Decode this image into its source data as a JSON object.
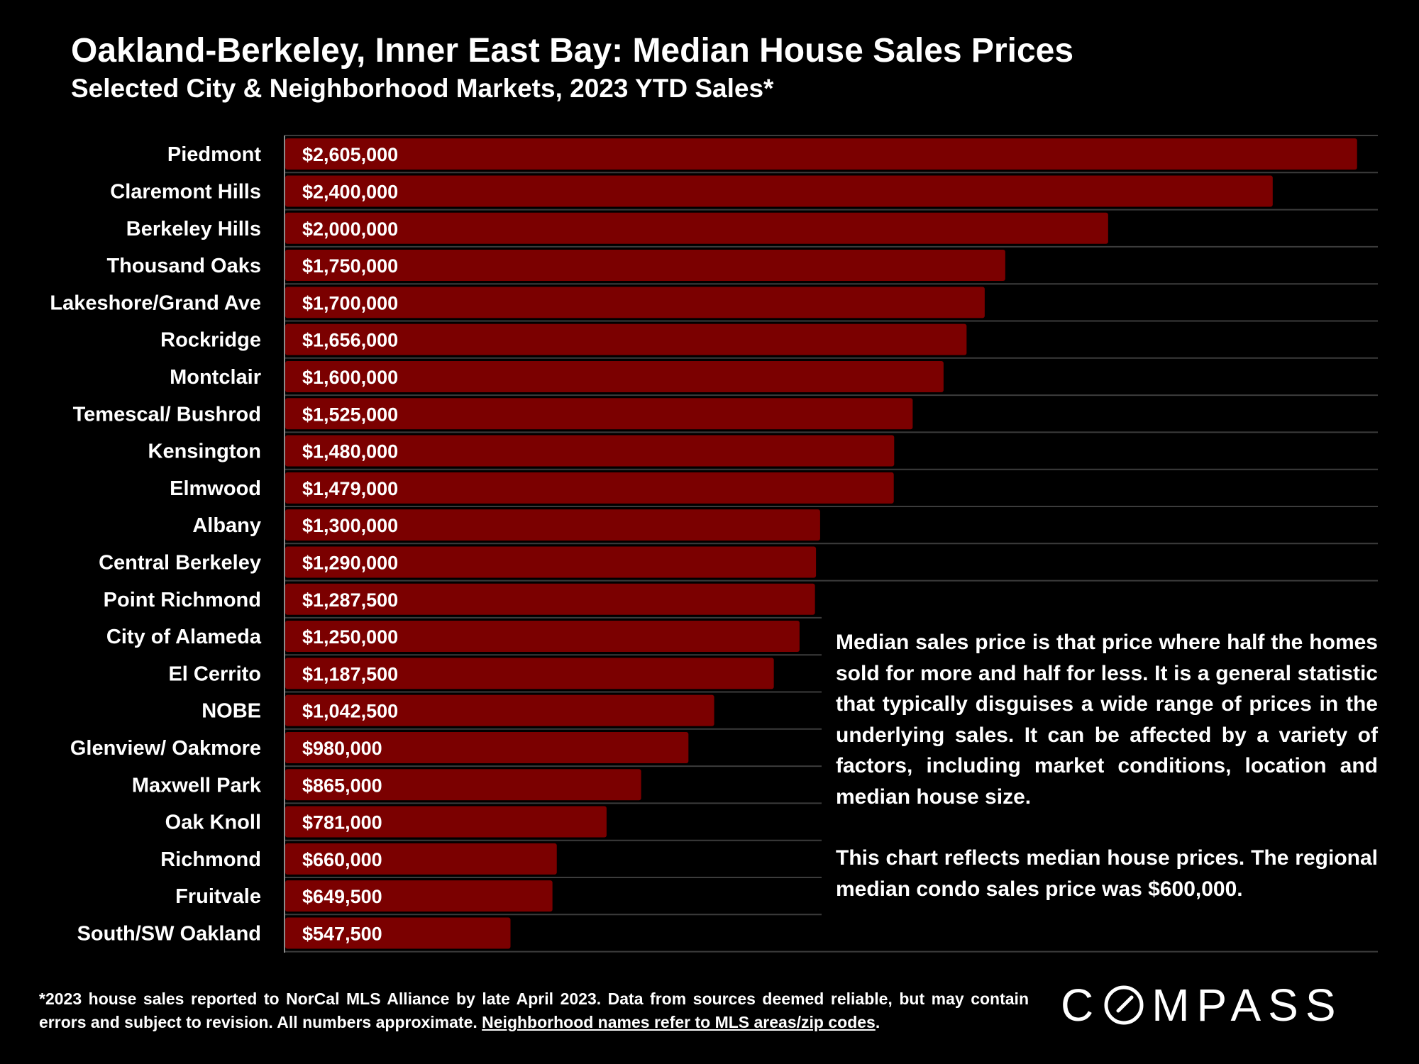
{
  "title": "Oakland-Berkeley, Inner East Bay: Median House Sales Prices",
  "subtitle": "Selected City & Neighborhood Markets, 2023 YTD Sales*",
  "chart_data": {
    "type": "bar",
    "orientation": "horizontal",
    "categories": [
      "Piedmont",
      "Claremont Hills",
      "Berkeley Hills",
      "Thousand Oaks",
      "Lakeshore/Grand Ave",
      "Rockridge",
      "Montclair",
      "Temescal/ Bushrod",
      "Kensington",
      "Elmwood",
      "Albany",
      "Central Berkeley",
      "Point Richmond",
      "City of Alameda",
      "El Cerrito",
      "NOBE",
      "Glenview/ Oakmore",
      "Maxwell Park",
      "Oak Knoll",
      "Richmond",
      "Fruitvale",
      "South/SW Oakland"
    ],
    "values": [
      2605000,
      2400000,
      2000000,
      1750000,
      1700000,
      1656000,
      1600000,
      1525000,
      1480000,
      1479000,
      1300000,
      1290000,
      1287500,
      1250000,
      1187500,
      1042500,
      980000,
      865000,
      781000,
      660000,
      649500,
      547500
    ],
    "data_labels": [
      "$2,605,000",
      "$2,400,000",
      "$2,000,000",
      "$1,750,000",
      "$1,700,000",
      "$1,656,000",
      "$1,600,000",
      "$1,525,000",
      "$1,480,000",
      "$1,479,000",
      "$1,300,000",
      "$1,290,000",
      "$1,287,500",
      "$1,250,000",
      "$1,187,500",
      "$1,042,500",
      "$980,000",
      "$865,000",
      "$781,000",
      "$660,000",
      "$649,500",
      "$547,500"
    ],
    "xlim": [
      0,
      2640000
    ],
    "bar_color": "#7b0000",
    "gridline_color": "#3c3c3c",
    "grid": true
  },
  "note": {
    "paragraph1": "Median sales price is that price where half the homes sold for more and half for less. It is a general statistic that typically disguises a wide range of prices in the underlying sales. It can be affected by a variety of factors, including market conditions, location and median house size.",
    "paragraph2": "This chart reflects median house prices. The regional median condo sales price was $600,000."
  },
  "footnote": {
    "text": "*2023 house sales reported to NorCal MLS Alliance by late April 2023. Data from sources deemed reliable, but may contain errors and subject to revision. All numbers approximate. ",
    "link": "Neighborhood names refer to MLS areas/zip codes",
    "end": "."
  },
  "logo": {
    "before": "C",
    "after": "MPASS"
  }
}
